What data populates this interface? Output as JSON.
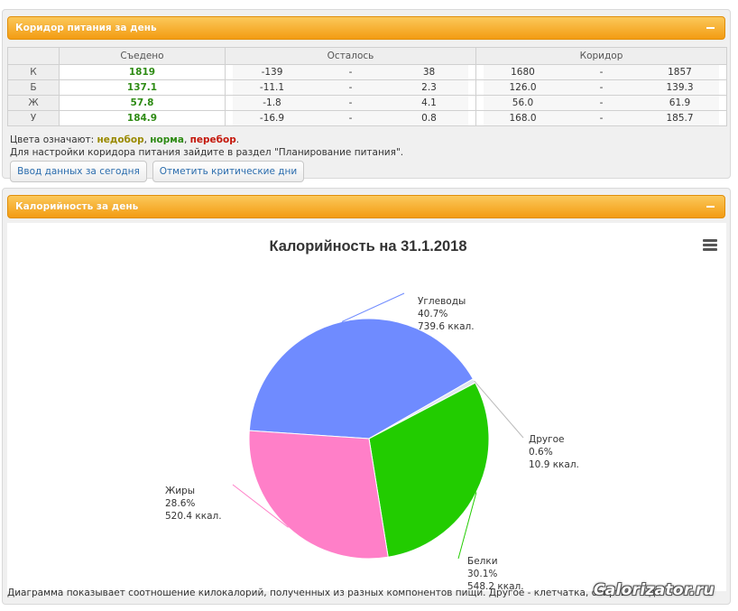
{
  "corridor_panel": {
    "title": "Коридор питания за день",
    "columns": [
      "",
      "Съедено",
      "Осталось",
      "Коридор"
    ],
    "rows": [
      {
        "label": "К",
        "eaten": "1819",
        "left_min": "-139",
        "left_sep": "-",
        "left_max": "38",
        "corr_min": "1680",
        "corr_sep": "-",
        "corr_max": "1857"
      },
      {
        "label": "Б",
        "eaten": "137.1",
        "left_min": "-11.1",
        "left_sep": "-",
        "left_max": "2.3",
        "corr_min": "126.0",
        "corr_sep": "-",
        "corr_max": "139.3"
      },
      {
        "label": "Ж",
        "eaten": "57.8",
        "left_min": "-1.8",
        "left_sep": "-",
        "left_max": "4.1",
        "corr_min": "56.0",
        "corr_sep": "-",
        "corr_max": "61.9"
      },
      {
        "label": "У",
        "eaten": "184.9",
        "left_min": "-16.9",
        "left_sep": "-",
        "left_max": "0.8",
        "corr_min": "168.0",
        "corr_sep": "-",
        "corr_max": "185.7"
      }
    ],
    "legend_prefix": "Цвета означают: ",
    "legend_under": "недобор",
    "legend_sep1": ", ",
    "legend_norm": "норма",
    "legend_sep2": ", ",
    "legend_over": "перебор",
    "legend_end": ".",
    "hint": "Для настройки коридора питания зайдите в раздел \"Планирование питания\".",
    "button_enter": "Ввод данных за сегодня",
    "button_critical": "Отметить критические дни"
  },
  "calorie_panel": {
    "title": "Калорийность за день",
    "caption": "Диаграмма показывает соотношение килокалорий, полученных из разных компонентов пищи. Другое - клетчатка, спирты и т.д."
  },
  "chart_data": {
    "type": "pie",
    "title": "Калорийность на 31.1.2018",
    "slices": [
      {
        "name": "Углеводы",
        "percent": "40.7%",
        "kcal": "739.6 ккал.",
        "value": 739.6,
        "color": "#6f8bff"
      },
      {
        "name": "Другое",
        "percent": "0.6%",
        "kcal": "10.9 ккал.",
        "value": 10.9,
        "color": "#e0e6f0"
      },
      {
        "name": "Белки",
        "percent": "30.1%",
        "kcal": "548.2 ккал.",
        "value": 548.2,
        "color": "#22cc00"
      },
      {
        "name": "Жиры",
        "percent": "28.6%",
        "kcal": "520.4 ккал.",
        "value": 520.4,
        "color": "#ff7fc8"
      }
    ]
  },
  "watermark": "Calorizator.ru",
  "icons": {
    "collapse": "minus-icon",
    "chart_menu": "hamburger-menu-icon"
  }
}
